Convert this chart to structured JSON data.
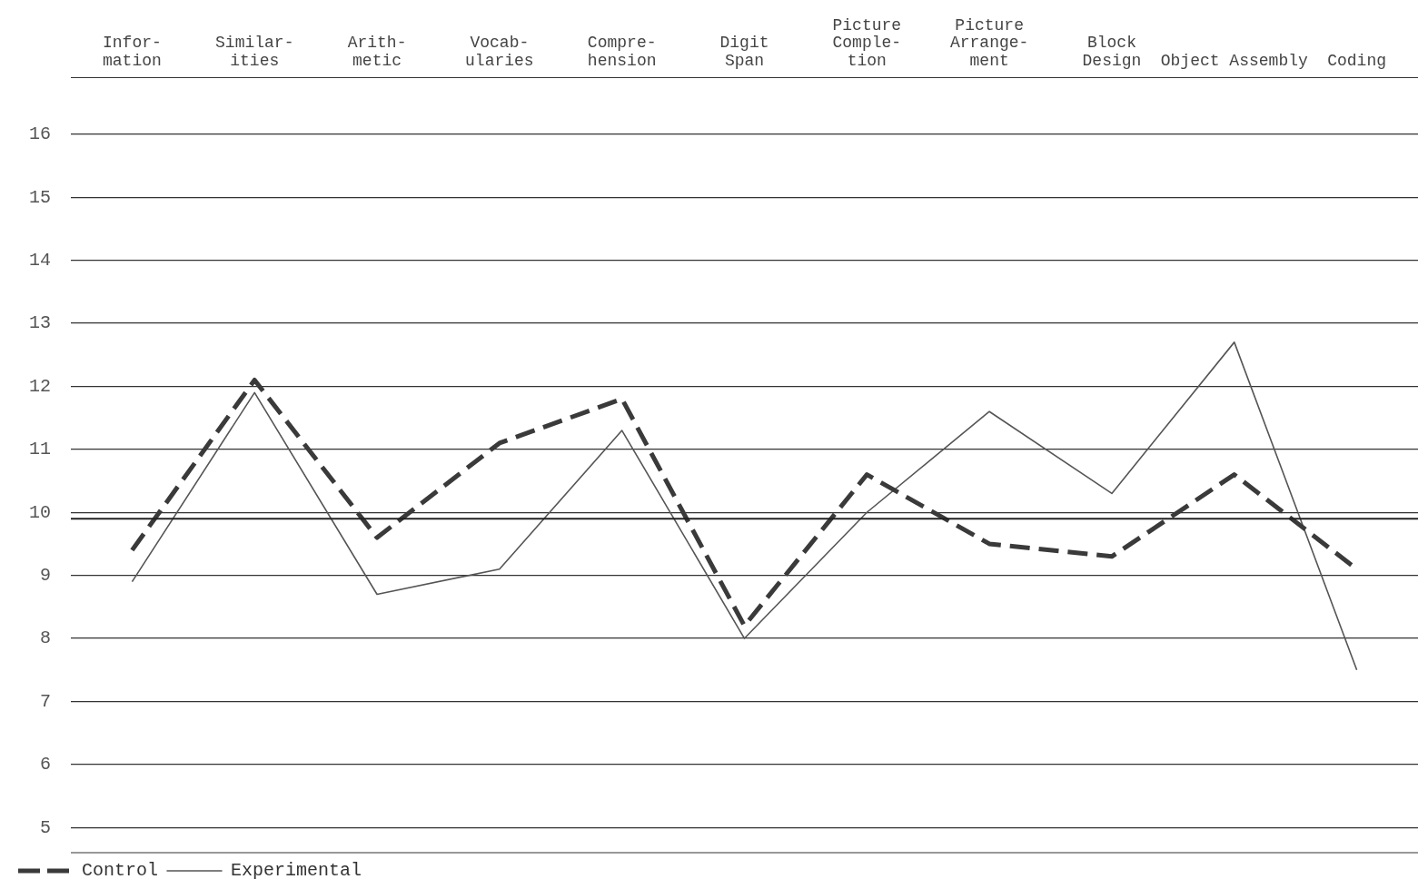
{
  "chart_data": {
    "type": "line",
    "categories": [
      "Infor-\nmation",
      "Similar-\nities",
      "Arith-\nmetic",
      "Vocab-\nularies",
      "Compre-\nhension",
      "Digit\nSpan",
      "Picture\nComple-\ntion",
      "Picture\nArrange-\nment",
      "Block\nDesign",
      "Object Assembly",
      "Coding"
    ],
    "series": [
      {
        "name": "Control",
        "color": "#3a3a3a",
        "line_style": "dashed",
        "values": [
          9.4,
          12.1,
          9.6,
          11.1,
          11.8,
          8.2,
          10.6,
          9.5,
          9.3,
          10.6,
          9.1
        ]
      },
      {
        "name": "Experimental",
        "color": "#555555",
        "line_style": "solid",
        "values": [
          8.9,
          11.9,
          8.7,
          9.1,
          11.3,
          8.0,
          10.0,
          11.6,
          10.3,
          12.7,
          7.5
        ]
      }
    ],
    "ylim": [
      4.6,
      16.9
    ],
    "yticks": [
      5,
      6,
      7,
      8,
      9,
      10,
      11,
      12,
      13,
      14,
      15,
      16
    ],
    "ref_lines": [
      {
        "axis": "y",
        "value": 9.9,
        "color": "#222222"
      }
    ],
    "grid": "y",
    "legend": "bottom left",
    "marker": "none"
  }
}
